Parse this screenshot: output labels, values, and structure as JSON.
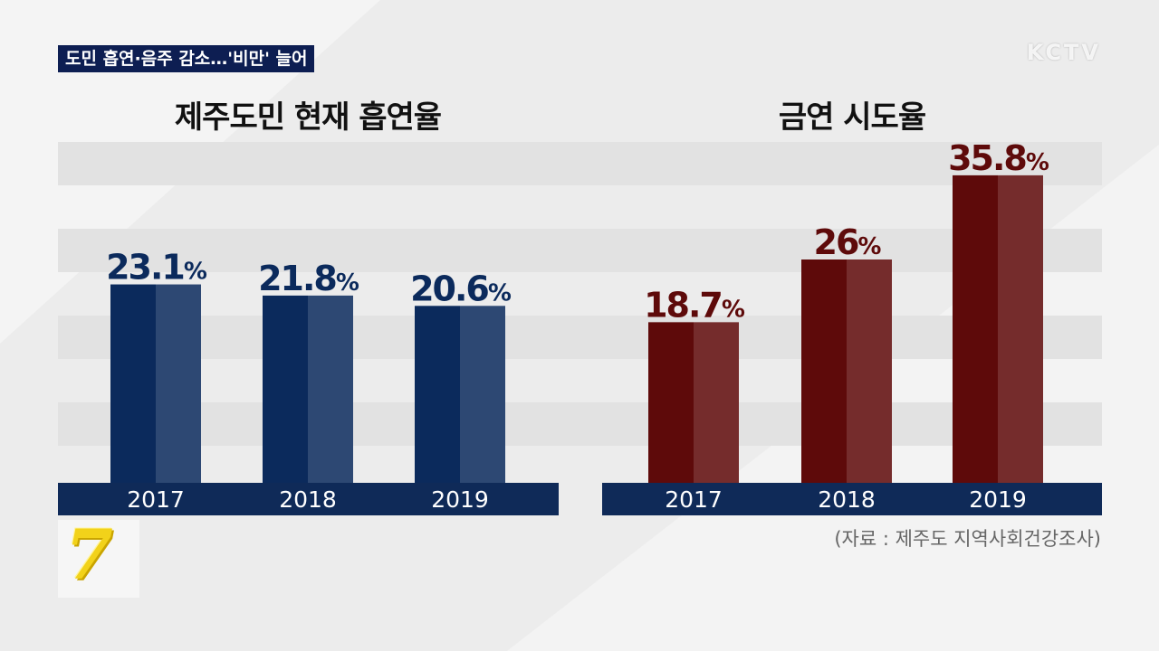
{
  "headline": "도민 흡연·음주 감소…'비만' 늘어",
  "brand": "KCTV",
  "source": "(자료 : 제주도 지역사회건강조사)",
  "logo_text": "7",
  "chart_data": [
    {
      "type": "bar",
      "title": "제주도민 현재 흡연율",
      "categories": [
        "2017",
        "2018",
        "2019"
      ],
      "values": [
        23.1,
        21.8,
        20.6
      ],
      "value_labels": [
        "23.1%",
        "21.8%",
        "20.6%"
      ],
      "unit": "%",
      "ylim": [
        0,
        40
      ],
      "color": "#0b2a5c",
      "label_color": "#0b2a5c",
      "grid": false
    },
    {
      "type": "bar",
      "title": "금연 시도율",
      "categories": [
        "2017",
        "2018",
        "2019"
      ],
      "values": [
        18.7,
        26,
        35.8
      ],
      "value_labels": [
        "18.7%",
        "26%",
        "35.8%"
      ],
      "unit": "%",
      "ylim": [
        0,
        40
      ],
      "color": "#5e0a0a",
      "label_color": "#5e0a0a",
      "grid": false
    }
  ],
  "colors": {
    "axis_band": "#0f2a58",
    "headline_bg": "#0d1e52"
  }
}
